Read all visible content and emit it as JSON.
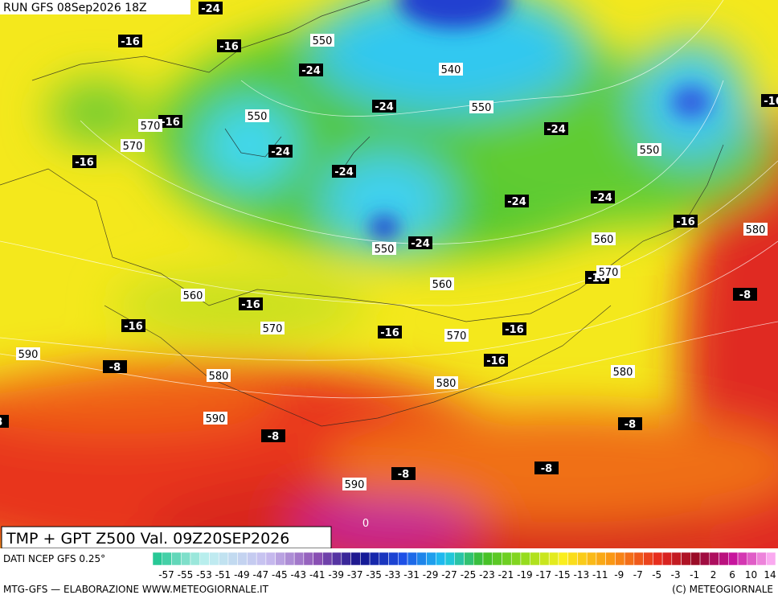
{
  "header": {
    "run": "RUN GFS 08Sep2026 18Z"
  },
  "title": "TMP + GPT Z500 Val. 09Z20SEP2026",
  "source": "DATI NCEP GFS 0.25°",
  "footer_left": "MTG-GFS — ELABORAZIONE WWW.METEOGIORNALE.IT",
  "footer_right": "(C) METEOGIORNALE",
  "colorbar": {
    "labels": [
      "-57",
      "-55",
      "-53",
      "-51",
      "-49",
      "-47",
      "-45",
      "-43",
      "-41",
      "-39",
      "-37",
      "-35",
      "-33",
      "-31",
      "-29",
      "-27",
      "-25",
      "-23",
      "-21",
      "-19",
      "-17",
      "-15",
      "-13",
      "-11",
      "-9",
      "-7",
      "-5",
      "-3",
      "-1",
      "2",
      "6",
      "10",
      "14"
    ]
  },
  "temperature_labels": [
    "-24",
    "-16",
    "-16",
    "-24",
    "-24",
    "-16",
    "-16",
    "-24",
    "-24",
    "-24",
    "-24",
    "-24",
    "-24",
    "-16",
    "-16",
    "-16",
    "-16",
    "-16",
    "-16",
    "-16",
    "-16",
    "-8",
    "-8",
    "-8",
    "-8",
    "-8",
    "-8",
    "-8"
  ],
  "height_labels": [
    "550",
    "540",
    "550",
    "570",
    "570",
    "550",
    "550",
    "550",
    "560",
    "580",
    "570",
    "560",
    "560",
    "570",
    "570",
    "590",
    "580",
    "580",
    "580",
    "590",
    "590"
  ],
  "surface_label": "0"
}
